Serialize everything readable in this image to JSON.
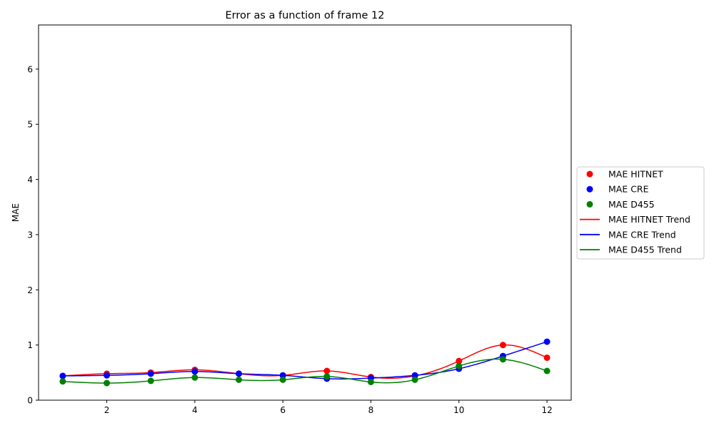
{
  "chart_data": {
    "type": "line",
    "title": "Error as a function of frame 12",
    "xlabel": "",
    "ylabel": "MAE",
    "xlim": [
      0.45,
      12.55
    ],
    "ylim": [
      0,
      6.8
    ],
    "xticks": [
      2,
      4,
      6,
      8,
      10,
      12
    ],
    "yticks": [
      0,
      1,
      2,
      3,
      4,
      5,
      6
    ],
    "grid": false,
    "legend_position": "center-right-outside",
    "x": [
      1,
      2,
      3,
      4,
      5,
      6,
      7,
      8,
      9,
      10,
      11,
      12
    ],
    "series": [
      {
        "name": "MAE HITNET",
        "kind": "points",
        "color": "#ff0000",
        "values": [
          0.44,
          0.48,
          0.5,
          0.55,
          0.48,
          0.45,
          0.53,
          0.42,
          0.44,
          0.71,
          1.0,
          0.77
        ]
      },
      {
        "name": "MAE CRE",
        "kind": "points",
        "color": "#0000ff",
        "values": [
          0.44,
          0.45,
          0.48,
          0.52,
          0.48,
          0.45,
          0.39,
          0.4,
          0.45,
          0.57,
          0.8,
          1.06
        ]
      },
      {
        "name": "MAE D455",
        "kind": "points",
        "color": "#008000",
        "values": [
          0.34,
          0.31,
          0.35,
          0.41,
          0.37,
          0.37,
          0.43,
          0.33,
          0.37,
          0.62,
          0.74,
          0.53
        ]
      },
      {
        "name": "MAE HITNET Trend",
        "kind": "line",
        "color": "#ff0000",
        "ref": 0
      },
      {
        "name": "MAE CRE Trend",
        "kind": "line",
        "color": "#0000ff",
        "ref": 1
      },
      {
        "name": "MAE D455 Trend",
        "kind": "line",
        "color": "#008000",
        "ref": 2
      }
    ]
  }
}
